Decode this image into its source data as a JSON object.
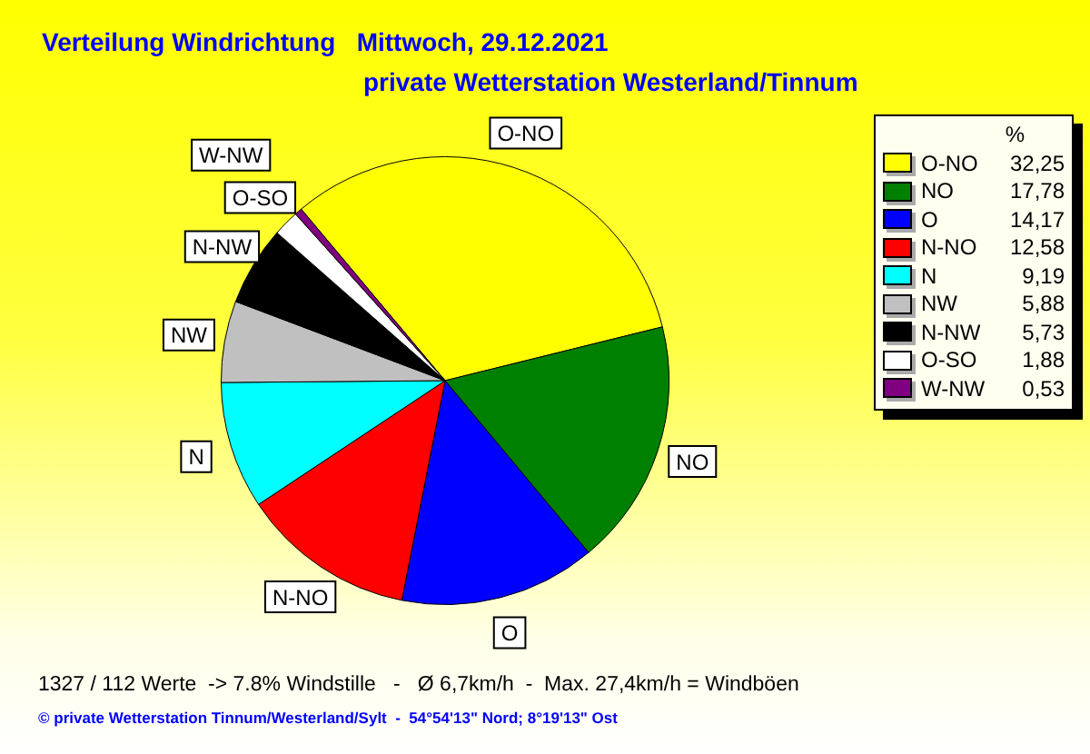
{
  "chart_data": {
    "type": "pie",
    "title": "Verteilung Windrichtung   Mittwoch, 29.12.2021",
    "subtitle": "private Wetterstation Westerland/Tinnum",
    "categories": [
      "O-NO",
      "NO",
      "O",
      "N-NO",
      "N",
      "NW",
      "N-NW",
      "O-SO",
      "W-NW"
    ],
    "values": [
      32.25,
      17.78,
      14.17,
      12.58,
      9.19,
      5.88,
      5.73,
      1.88,
      0.53
    ],
    "value_labels": [
      "32,25",
      "17,78",
      "14,17",
      "12,58",
      "9,19",
      "5,88",
      "5,73",
      "1,88",
      "0,53"
    ],
    "colors": [
      "#ffff00",
      "#008000",
      "#0000ff",
      "#ff0000",
      "#00ffff",
      "#c0c0c0",
      "#000000",
      "#ffffff",
      "#800080"
    ],
    "legend": "right",
    "legend_title": "%",
    "annotations": [
      "1327 / 112 Werte  -> 7.8% Windstille   -   Ø 6,7km/h  -  Max. 27,4km/h = Windböen",
      "© private Wetterstation Tinnum/Westerland/Sylt  -  54°54'13\" Nord; 8°19'13\" Ost"
    ]
  }
}
